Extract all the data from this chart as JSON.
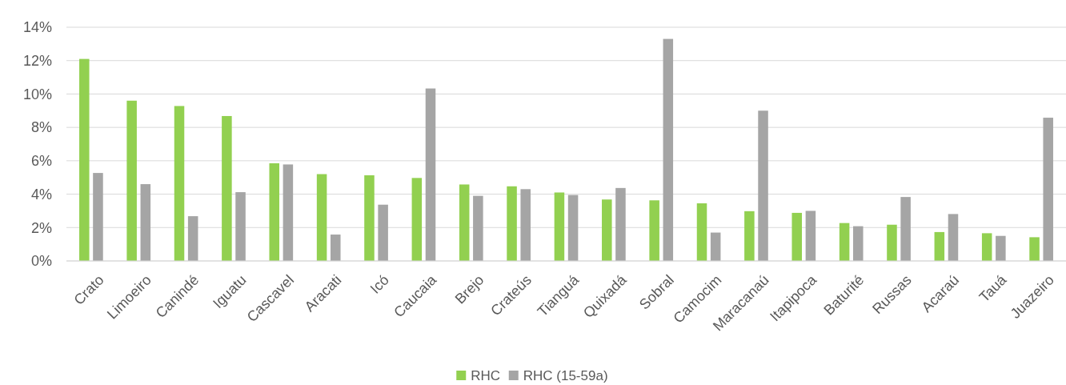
{
  "chart_data": {
    "type": "bar",
    "categories": [
      "Crato",
      "Limoeiro",
      "Canindé",
      "Iguatu",
      "Cascavel",
      "Aracati",
      "Icó",
      "Caucaia",
      "Brejo",
      "Crateús",
      "Tianguá",
      "Quixadá",
      "Sobral",
      "Camocim",
      "Maracanaú",
      "Itapipoca",
      "Baturité",
      "Russas",
      "Acaraú",
      "Tauá",
      "Juazeiro"
    ],
    "series": [
      {
        "name": "RHC",
        "color": "#92d050",
        "values": [
          12.1,
          9.6,
          9.28,
          8.68,
          5.85,
          5.2,
          5.13,
          4.97,
          4.58,
          4.47,
          4.1,
          3.68,
          3.63,
          3.45,
          2.98,
          2.88,
          2.27,
          2.17,
          1.73,
          1.66,
          1.42
        ]
      },
      {
        "name": "RHC (15-59a)",
        "color": "#a5a5a5",
        "values": [
          5.27,
          4.6,
          2.68,
          4.12,
          5.78,
          1.58,
          3.37,
          10.33,
          3.9,
          4.3,
          3.95,
          4.37,
          13.3,
          1.7,
          9.0,
          3.0,
          2.08,
          3.83,
          2.81,
          1.5,
          8.58
        ]
      }
    ],
    "ylim": [
      0,
      14
    ],
    "yticks": [
      {
        "value": 0,
        "label": "0%"
      },
      {
        "value": 2,
        "label": "2%"
      },
      {
        "value": 4,
        "label": "4%"
      },
      {
        "value": 6,
        "label": "6%"
      },
      {
        "value": 8,
        "label": "8%"
      },
      {
        "value": 10,
        "label": "10%"
      },
      {
        "value": 12,
        "label": "12%"
      },
      {
        "value": 14,
        "label": "14%"
      }
    ],
    "grid": "y",
    "legend": "bottom"
  }
}
